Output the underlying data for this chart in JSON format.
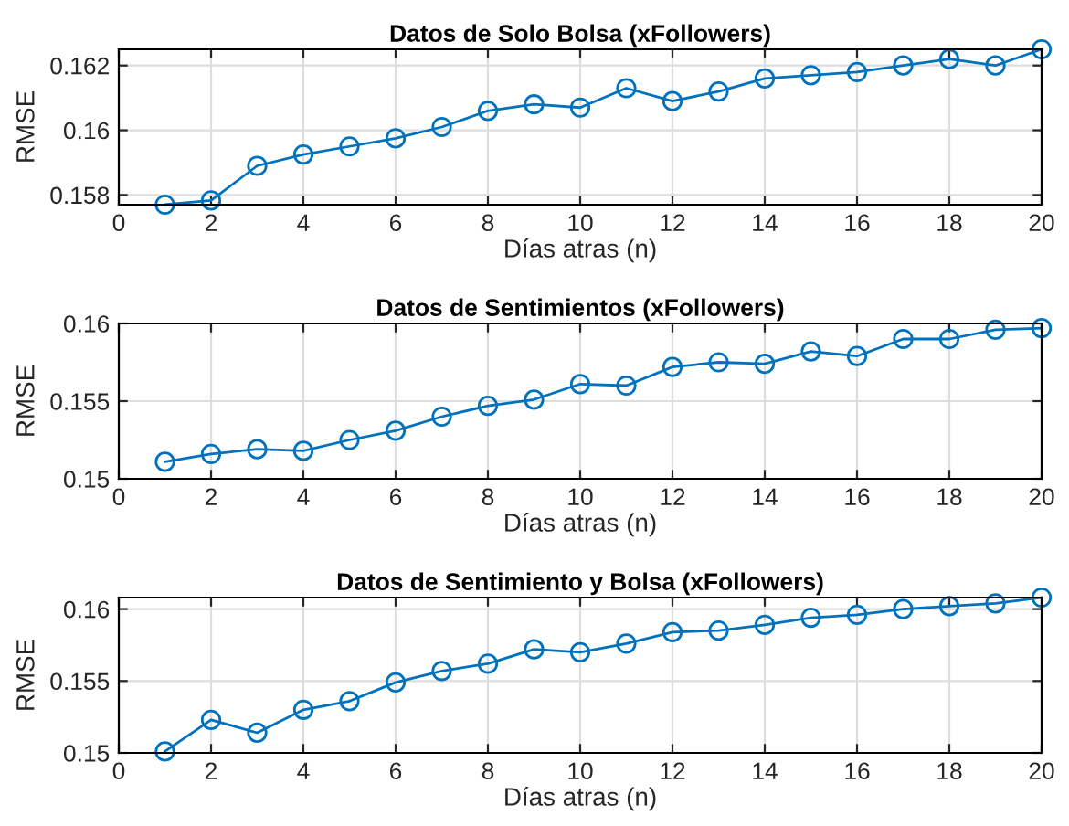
{
  "chart_data": [
    {
      "type": "line",
      "title": "Datos de Solo Bolsa (xFollowers)",
      "xlabel": "Días atras (n)",
      "ylabel": "RMSE",
      "x": [
        1,
        2,
        3,
        4,
        5,
        6,
        7,
        8,
        9,
        10,
        11,
        12,
        13,
        14,
        15,
        16,
        17,
        18,
        19,
        20
      ],
      "series": [
        {
          "color": "#0072bd",
          "values": [
            0.1577,
            0.15783,
            0.1589,
            0.15925,
            0.1595,
            0.15975,
            0.1601,
            0.1606,
            0.1608,
            0.1607,
            0.1613,
            0.1609,
            0.1612,
            0.1616,
            0.1617,
            0.1618,
            0.162,
            0.1622,
            0.162,
            0.1625
          ]
        }
      ],
      "xlim": [
        0,
        20
      ],
      "xticks": [
        0,
        2,
        4,
        6,
        8,
        10,
        12,
        14,
        16,
        18,
        20
      ],
      "ylim": [
        0.1577,
        0.1625
      ],
      "yticks": [
        0.158,
        0.16,
        0.162
      ],
      "grid": true,
      "marker": "circle",
      "line_style": "solid"
    },
    {
      "type": "line",
      "title": "Datos de Sentimientos (xFollowers)",
      "xlabel": "Días atras (n)",
      "ylabel": "RMSE",
      "x": [
        1,
        2,
        3,
        4,
        5,
        6,
        7,
        8,
        9,
        10,
        11,
        12,
        13,
        14,
        15,
        16,
        17,
        18,
        19,
        20
      ],
      "series": [
        {
          "color": "#0072bd",
          "values": [
            0.1511,
            0.1516,
            0.1519,
            0.1518,
            0.1525,
            0.1531,
            0.154,
            0.1547,
            0.1551,
            0.1561,
            0.156,
            0.1572,
            0.1575,
            0.1574,
            0.1582,
            0.1579,
            0.159,
            0.159,
            0.1596,
            0.1597
          ]
        }
      ],
      "xlim": [
        0,
        20
      ],
      "xticks": [
        0,
        2,
        4,
        6,
        8,
        10,
        12,
        14,
        16,
        18,
        20
      ],
      "ylim": [
        0.15,
        0.16
      ],
      "yticks": [
        0.15,
        0.155,
        0.16
      ],
      "grid": true,
      "marker": "circle",
      "line_style": "solid"
    },
    {
      "type": "line",
      "title": "Datos de Sentimiento y Bolsa (xFollowers)",
      "xlabel": "Días atras (n)",
      "ylabel": "RMSE",
      "x": [
        1,
        2,
        3,
        4,
        5,
        6,
        7,
        8,
        9,
        10,
        11,
        12,
        13,
        14,
        15,
        16,
        17,
        18,
        19,
        20
      ],
      "series": [
        {
          "color": "#0072bd",
          "values": [
            0.1501,
            0.1523,
            0.1514,
            0.153,
            0.1536,
            0.1549,
            0.1557,
            0.1562,
            0.1572,
            0.157,
            0.1576,
            0.1584,
            0.1585,
            0.1589,
            0.1594,
            0.1596,
            0.16,
            0.1602,
            0.1604,
            0.1608
          ]
        }
      ],
      "xlim": [
        0,
        20
      ],
      "xticks": [
        0,
        2,
        4,
        6,
        8,
        10,
        12,
        14,
        16,
        18,
        20
      ],
      "ylim": [
        0.15,
        0.1608
      ],
      "yticks": [
        0.15,
        0.155,
        0.16
      ],
      "grid": true,
      "marker": "circle",
      "line_style": "solid"
    }
  ]
}
